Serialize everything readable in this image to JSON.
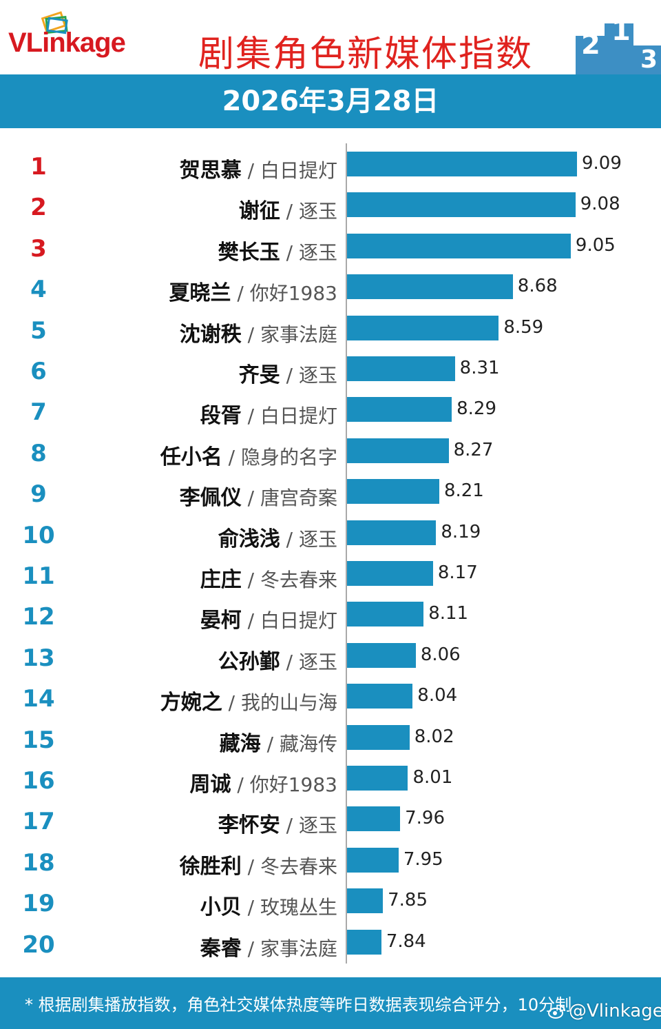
{
  "header": {
    "logo_text_vl": "VL",
    "logo_text_rest": "inkage",
    "title": "剧集角色新媒体指数",
    "podium_numbers": [
      "2",
      "1",
      "3"
    ]
  },
  "date": "2026年3月28日",
  "colors": {
    "accent": "#1a8fbf",
    "title_red": "#e0231f",
    "rank_top3": "#d71920",
    "rank_other": "#1a8fbf"
  },
  "chart_data": {
    "type": "bar",
    "orientation": "horizontal",
    "title": "剧集角色新媒体指数",
    "scale_max": 10,
    "entries": [
      {
        "rank": "1",
        "name": "贺思慕",
        "show": "白日提灯",
        "value": 9.09,
        "value_label": "9.09"
      },
      {
        "rank": "2",
        "name": "谢征",
        "show": "逐玉",
        "value": 9.08,
        "value_label": "9.08"
      },
      {
        "rank": "3",
        "name": "樊长玉",
        "show": "逐玉",
        "value": 9.05,
        "value_label": "9.05"
      },
      {
        "rank": "4",
        "name": "夏晓兰",
        "show": "你好1983",
        "value": 8.68,
        "value_label": "8.68"
      },
      {
        "rank": "5",
        "name": "沈谢秩",
        "show": "家事法庭",
        "value": 8.59,
        "value_label": "8.59"
      },
      {
        "rank": "6",
        "name": "齐旻",
        "show": "逐玉",
        "value": 8.31,
        "value_label": "8.31"
      },
      {
        "rank": "7",
        "name": "段胥",
        "show": "白日提灯",
        "value": 8.29,
        "value_label": "8.29"
      },
      {
        "rank": "8",
        "name": "任小名",
        "show": "隐身的名字",
        "value": 8.27,
        "value_label": "8.27"
      },
      {
        "rank": "9",
        "name": "李佩仪",
        "show": "唐宫奇案",
        "value": 8.21,
        "value_label": "8.21"
      },
      {
        "rank": "10",
        "name": "俞浅浅",
        "show": "逐玉",
        "value": 8.19,
        "value_label": "8.19"
      },
      {
        "rank": "11",
        "name": "庄庄",
        "show": "冬去春来",
        "value": 8.17,
        "value_label": "8.17"
      },
      {
        "rank": "12",
        "name": "晏柯",
        "show": "白日提灯",
        "value": 8.11,
        "value_label": "8.11"
      },
      {
        "rank": "13",
        "name": "公孙鄞",
        "show": "逐玉",
        "value": 8.06,
        "value_label": "8.06"
      },
      {
        "rank": "14",
        "name": "方婉之",
        "show": "我的山与海",
        "value": 8.04,
        "value_label": "8.04"
      },
      {
        "rank": "15",
        "name": "藏海",
        "show": "藏海传",
        "value": 8.02,
        "value_label": "8.02"
      },
      {
        "rank": "16",
        "name": "周诚",
        "show": "你好1983",
        "value": 8.01,
        "value_label": "8.01"
      },
      {
        "rank": "17",
        "name": "李怀安",
        "show": "逐玉",
        "value": 7.96,
        "value_label": "7.96"
      },
      {
        "rank": "18",
        "name": "徐胜利",
        "show": "冬去春来",
        "value": 7.95,
        "value_label": "7.95"
      },
      {
        "rank": "19",
        "name": "小贝",
        "show": "玫瑰丛生",
        "value": 7.85,
        "value_label": "7.85"
      },
      {
        "rank": "20",
        "name": "秦睿",
        "show": "家事法庭",
        "value": 7.84,
        "value_label": "7.84"
      }
    ]
  },
  "footer": {
    "note": "* 根据剧集播放指数，角色社交媒体热度等昨日数据表现综合评分，10分制",
    "watermark": "@Vlinkage"
  }
}
